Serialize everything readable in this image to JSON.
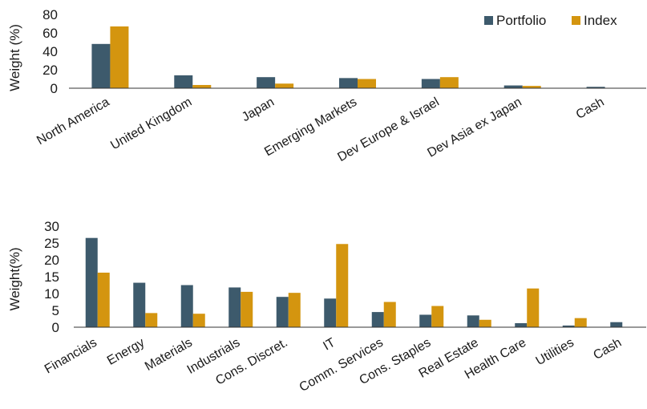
{
  "colors": {
    "portfolio": "#3d5a6c",
    "index": "#d4950f"
  },
  "chart_data": [
    {
      "type": "bar",
      "categories": [
        "North America",
        "United Kingdom",
        "Japan",
        "Emerging Markets",
        "Dev Europe & Israel",
        "Dev Asia ex Japan",
        "Cash"
      ],
      "series": [
        {
          "name": "Portfolio",
          "values": [
            48,
            14,
            12,
            11,
            10,
            3,
            1.5
          ]
        },
        {
          "name": "Index",
          "values": [
            67,
            3.5,
            5,
            10,
            12,
            2.5,
            0
          ]
        }
      ],
      "ylabel": "Weight (%)",
      "ylim": [
        0,
        80
      ],
      "yticks": [
        "0",
        "20",
        "40",
        "60",
        "80"
      ],
      "legend": "top-right",
      "grid": false
    },
    {
      "type": "bar",
      "categories": [
        "Financials",
        "Energy",
        "Materials",
        "Industrials",
        "Cons. Discret.",
        "IT",
        "Comm. Services",
        "Cons. Staples",
        "Real Estate",
        "Health Care",
        "Utilities",
        "Cash"
      ],
      "series": [
        {
          "name": "Portfolio",
          "values": [
            26.5,
            13.2,
            12.5,
            11.8,
            9,
            8.5,
            4.5,
            3.7,
            3.5,
            1.2,
            0.5,
            1.5
          ]
        },
        {
          "name": "Index",
          "values": [
            16.2,
            4.2,
            4,
            10.5,
            10.2,
            24.7,
            7.5,
            6.3,
            2.2,
            11.5,
            2.7,
            0
          ]
        }
      ],
      "ylabel": "Weight(%)",
      "ylim": [
        0,
        30
      ],
      "yticks": [
        "0",
        "5",
        "10",
        "15",
        "20",
        "25",
        "30"
      ],
      "grid": false
    }
  ]
}
